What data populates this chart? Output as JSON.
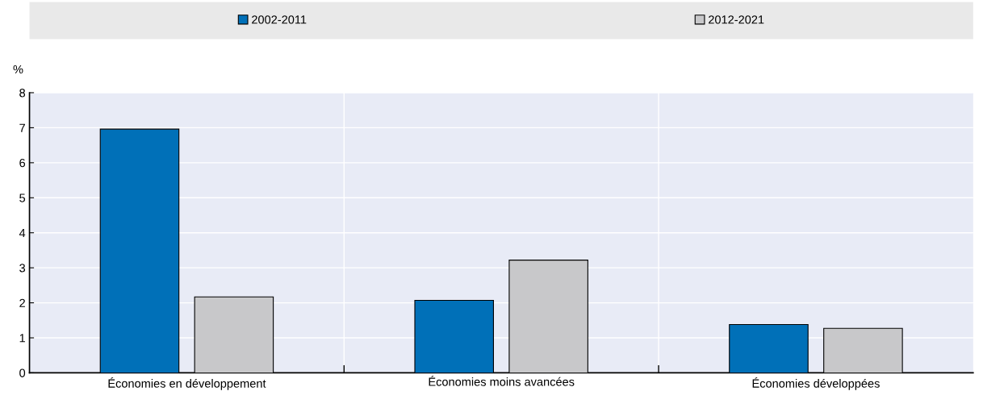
{
  "chart_data": {
    "type": "bar",
    "ylabel": "%",
    "categories": [
      "Économies en développement",
      "Économies moins avancées",
      "Économies développées"
    ],
    "series": [
      {
        "name": "2002-2011",
        "color": "#0070b8",
        "values": [
          6.96,
          2.07,
          1.38
        ]
      },
      {
        "name": "2012-2021",
        "color": "#c8c8ca",
        "values": [
          2.17,
          3.22,
          1.27
        ]
      }
    ],
    "ylim": [
      0,
      8
    ],
    "yticks": [
      0,
      1,
      2,
      3,
      4,
      5,
      6,
      7,
      8
    ],
    "grid": true,
    "legend": "top"
  }
}
